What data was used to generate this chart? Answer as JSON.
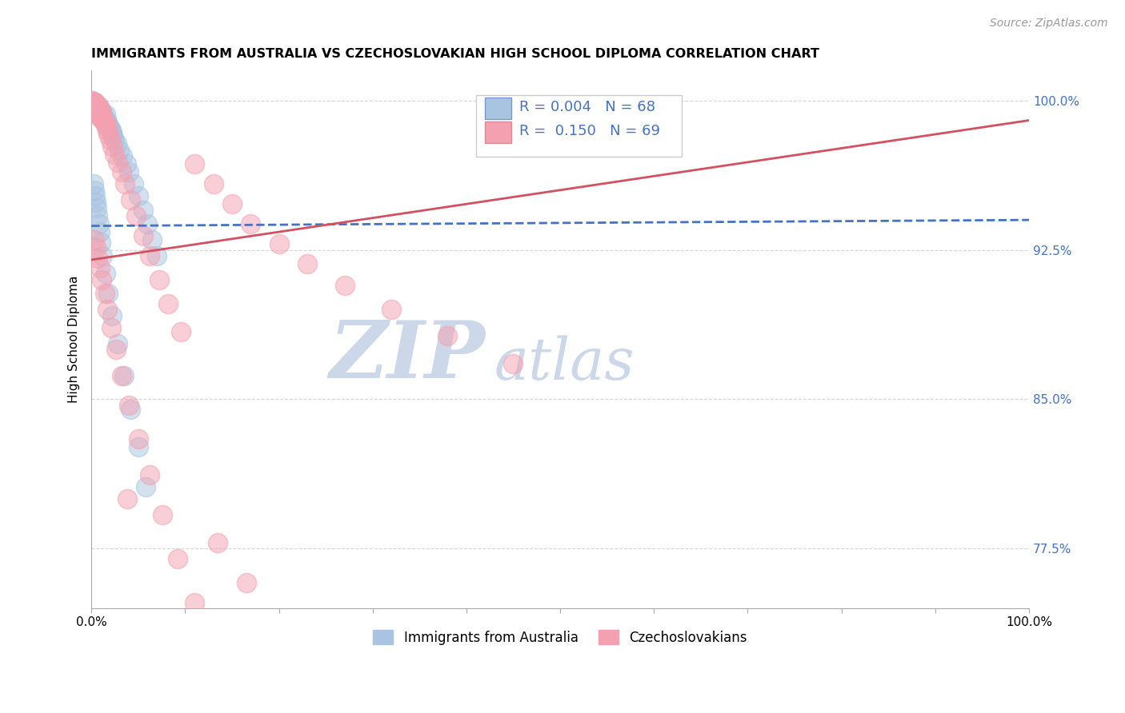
{
  "title": "IMMIGRANTS FROM AUSTRALIA VS CZECHOSLOVAKIAN HIGH SCHOOL DIPLOMA CORRELATION CHART",
  "source": "Source: ZipAtlas.com",
  "ylabel": "High School Diploma",
  "ytick_labels": [
    "77.5%",
    "85.0%",
    "92.5%",
    "100.0%"
  ],
  "ytick_values": [
    0.775,
    0.85,
    0.925,
    1.0
  ],
  "xmin": 0.0,
  "xmax": 1.0,
  "ymin": 0.745,
  "ymax": 1.015,
  "legend_entries": [
    {
      "label": "Immigrants from Australia",
      "color": "#a8c4e0",
      "R": "0.004",
      "N": "68"
    },
    {
      "label": "Czechoslovakians",
      "color": "#f4a0b0",
      "R": "0.150",
      "N": "69"
    }
  ],
  "blue_scatter_x": [
    0.001,
    0.002,
    0.002,
    0.003,
    0.003,
    0.003,
    0.004,
    0.004,
    0.005,
    0.005,
    0.005,
    0.006,
    0.006,
    0.007,
    0.007,
    0.008,
    0.008,
    0.008,
    0.009,
    0.009,
    0.01,
    0.01,
    0.011,
    0.011,
    0.012,
    0.012,
    0.013,
    0.014,
    0.015,
    0.015,
    0.016,
    0.017,
    0.018,
    0.019,
    0.02,
    0.021,
    0.022,
    0.023,
    0.025,
    0.027,
    0.03,
    0.033,
    0.037,
    0.04,
    0.045,
    0.05,
    0.055,
    0.06,
    0.065,
    0.07,
    0.002,
    0.003,
    0.004,
    0.005,
    0.006,
    0.007,
    0.008,
    0.009,
    0.01,
    0.012,
    0.015,
    0.018,
    0.022,
    0.028,
    0.035,
    0.042,
    0.05,
    0.058
  ],
  "blue_scatter_y": [
    1.0,
    0.999,
    0.998,
    0.999,
    0.998,
    0.997,
    0.998,
    0.997,
    0.998,
    0.997,
    0.996,
    0.997,
    0.996,
    0.997,
    0.995,
    0.997,
    0.996,
    0.994,
    0.996,
    0.994,
    0.995,
    0.993,
    0.994,
    0.992,
    0.994,
    0.991,
    0.992,
    0.991,
    0.993,
    0.99,
    0.99,
    0.989,
    0.988,
    0.987,
    0.986,
    0.985,
    0.984,
    0.982,
    0.98,
    0.978,
    0.975,
    0.972,
    0.968,
    0.964,
    0.958,
    0.952,
    0.945,
    0.938,
    0.93,
    0.922,
    0.958,
    0.955,
    0.952,
    0.949,
    0.946,
    0.942,
    0.938,
    0.934,
    0.929,
    0.922,
    0.913,
    0.903,
    0.892,
    0.878,
    0.862,
    0.845,
    0.826,
    0.806
  ],
  "pink_scatter_x": [
    0.001,
    0.002,
    0.002,
    0.003,
    0.003,
    0.004,
    0.004,
    0.005,
    0.005,
    0.006,
    0.006,
    0.007,
    0.007,
    0.008,
    0.008,
    0.009,
    0.009,
    0.01,
    0.01,
    0.011,
    0.012,
    0.013,
    0.014,
    0.015,
    0.016,
    0.017,
    0.018,
    0.02,
    0.022,
    0.025,
    0.028,
    0.032,
    0.036,
    0.042,
    0.048,
    0.055,
    0.062,
    0.072,
    0.082,
    0.095,
    0.11,
    0.13,
    0.15,
    0.17,
    0.2,
    0.23,
    0.27,
    0.32,
    0.38,
    0.45,
    0.003,
    0.005,
    0.007,
    0.009,
    0.011,
    0.014,
    0.017,
    0.021,
    0.026,
    0.032,
    0.04,
    0.05,
    0.062,
    0.076,
    0.092,
    0.11,
    0.135,
    0.165,
    0.038
  ],
  "pink_scatter_y": [
    1.0,
    0.999,
    0.998,
    0.999,
    0.998,
    0.999,
    0.997,
    0.998,
    0.996,
    0.997,
    0.995,
    0.997,
    0.994,
    0.996,
    0.993,
    0.995,
    0.992,
    0.994,
    0.991,
    0.992,
    0.991,
    0.99,
    0.989,
    0.988,
    0.987,
    0.985,
    0.983,
    0.98,
    0.977,
    0.973,
    0.969,
    0.964,
    0.958,
    0.95,
    0.942,
    0.932,
    0.922,
    0.91,
    0.898,
    0.884,
    0.968,
    0.958,
    0.948,
    0.938,
    0.928,
    0.918,
    0.907,
    0.895,
    0.882,
    0.868,
    0.93,
    0.926,
    0.921,
    0.916,
    0.91,
    0.903,
    0.895,
    0.886,
    0.875,
    0.862,
    0.847,
    0.83,
    0.812,
    0.792,
    0.77,
    0.748,
    0.778,
    0.758,
    0.8
  ],
  "blue_line_x": [
    0.0,
    1.0
  ],
  "blue_line_y": [
    0.937,
    0.94
  ],
  "pink_line_x": [
    0.0,
    1.0
  ],
  "pink_line_y": [
    0.92,
    0.99
  ],
  "blue_line_color": "#4472c4",
  "pink_line_color": "#d45060",
  "blue_dot_color": "#a8c4e0",
  "pink_dot_color": "#f4a0b0",
  "grid_color": "#cccccc",
  "watermark_zip": "ZIP",
  "watermark_atlas": "atlas",
  "watermark_color": "#ccd8ea"
}
